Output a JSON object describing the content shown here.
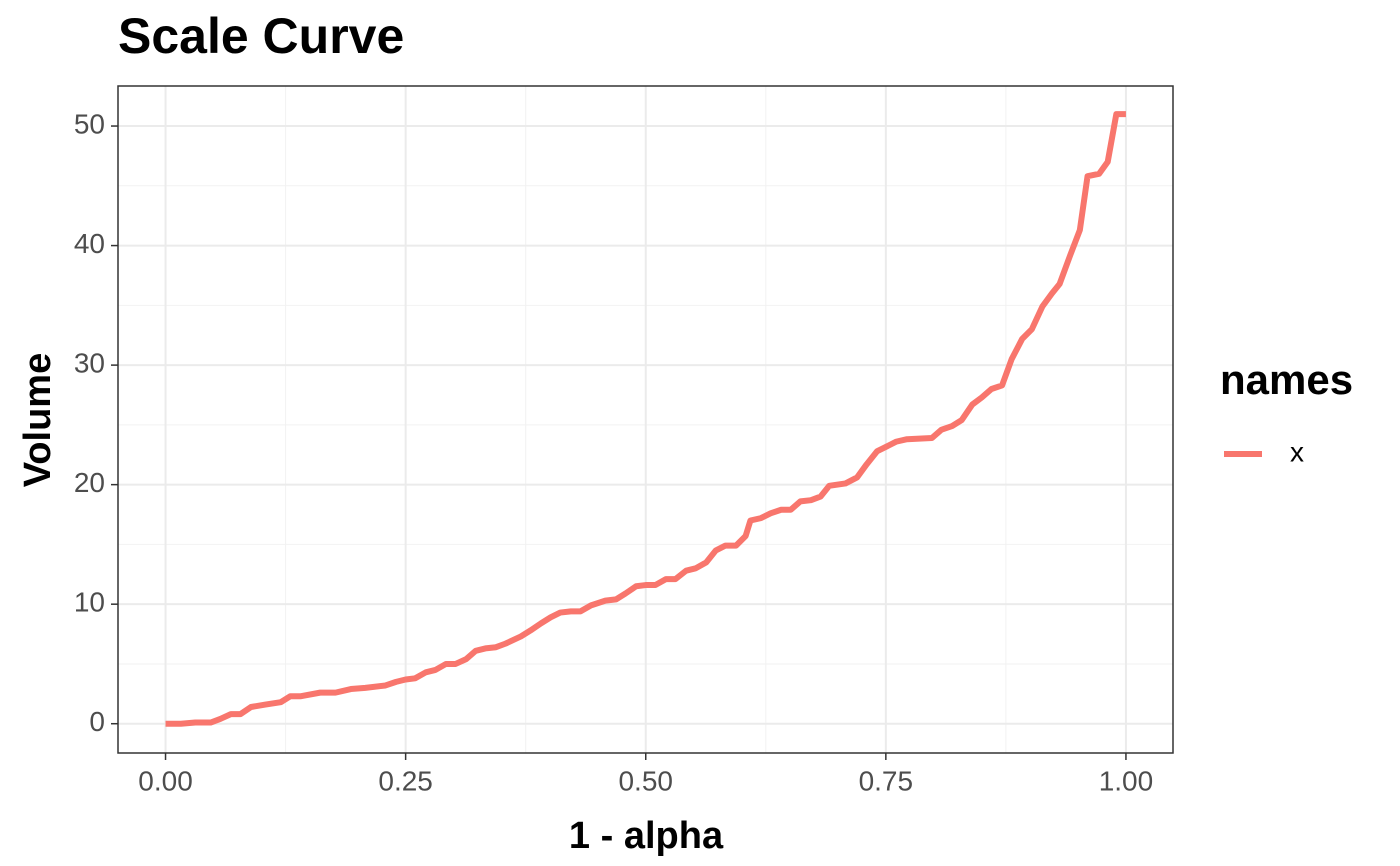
{
  "chart_data": {
    "type": "line",
    "title": "Scale Curve",
    "x_label": "1 - alpha",
    "y_label": "Volume",
    "legend_title": "names",
    "legend_position": "right",
    "grid": true,
    "minor_grid": true,
    "x": [
      0,
      0.016,
      0.031,
      0.047,
      0.057,
      0.068,
      0.078,
      0.089,
      0.104,
      0.12,
      0.13,
      0.141,
      0.161,
      0.177,
      0.193,
      0.208,
      0.229,
      0.24,
      0.25,
      0.26,
      0.271,
      0.281,
      0.292,
      0.302,
      0.313,
      0.323,
      0.333,
      0.344,
      0.354,
      0.37,
      0.38,
      0.391,
      0.401,
      0.411,
      0.422,
      0.432,
      0.443,
      0.458,
      0.469,
      0.479,
      0.49,
      0.5,
      0.51,
      0.521,
      0.531,
      0.542,
      0.552,
      0.563,
      0.573,
      0.583,
      0.594,
      0.604,
      0.609,
      0.62,
      0.63,
      0.641,
      0.651,
      0.661,
      0.672,
      0.682,
      0.691,
      0.708,
      0.72,
      0.73,
      0.741,
      0.751,
      0.761,
      0.772,
      0.798,
      0.808,
      0.819,
      0.829,
      0.84,
      0.85,
      0.86,
      0.871,
      0.881,
      0.892,
      0.902,
      0.913,
      0.923,
      0.931,
      0.942,
      0.952,
      0.96,
      0.972,
      0.981,
      0.99,
      1.0
    ],
    "series": [
      {
        "name": "x",
        "color": "#F8766D",
        "values": [
          0,
          0,
          0.1,
          0.1,
          0.4,
          0.8,
          0.8,
          1.4,
          1.6,
          1.8,
          2.3,
          2.3,
          2.6,
          2.6,
          2.9,
          3.0,
          3.2,
          3.5,
          3.7,
          3.8,
          4.3,
          4.5,
          5.0,
          5.0,
          5.4,
          6.1,
          6.3,
          6.4,
          6.7,
          7.3,
          7.8,
          8.4,
          8.9,
          9.3,
          9.4,
          9.4,
          9.9,
          10.3,
          10.4,
          10.9,
          11.5,
          11.6,
          11.6,
          12.1,
          12.1,
          12.8,
          13.0,
          13.5,
          14.5,
          14.9,
          14.9,
          15.7,
          17.0,
          17.2,
          17.6,
          17.9,
          17.9,
          18.6,
          18.7,
          19.0,
          19.9,
          20.1,
          20.6,
          21.7,
          22.8,
          23.2,
          23.6,
          23.8,
          23.9,
          24.6,
          24.9,
          25.4,
          26.7,
          27.3,
          28.0,
          28.3,
          30.5,
          32.2,
          33.0,
          34.9,
          36.0,
          36.8,
          39.2,
          41.3,
          45.8,
          46.0,
          47.0,
          51.0,
          51.0
        ]
      }
    ],
    "xlim": [
      -0.0495,
      1.049
    ],
    "xticks": [
      {
        "value": 0,
        "label": "0.00"
      },
      {
        "value": 0.25,
        "label": "0.25"
      },
      {
        "value": 0.5,
        "label": "0.50"
      },
      {
        "value": 0.75,
        "label": "0.75"
      },
      {
        "value": 1,
        "label": "1.00"
      }
    ],
    "ylim": [
      -2.45,
      53.35
    ],
    "yticks": [
      0,
      10,
      20,
      30,
      40,
      50
    ]
  }
}
